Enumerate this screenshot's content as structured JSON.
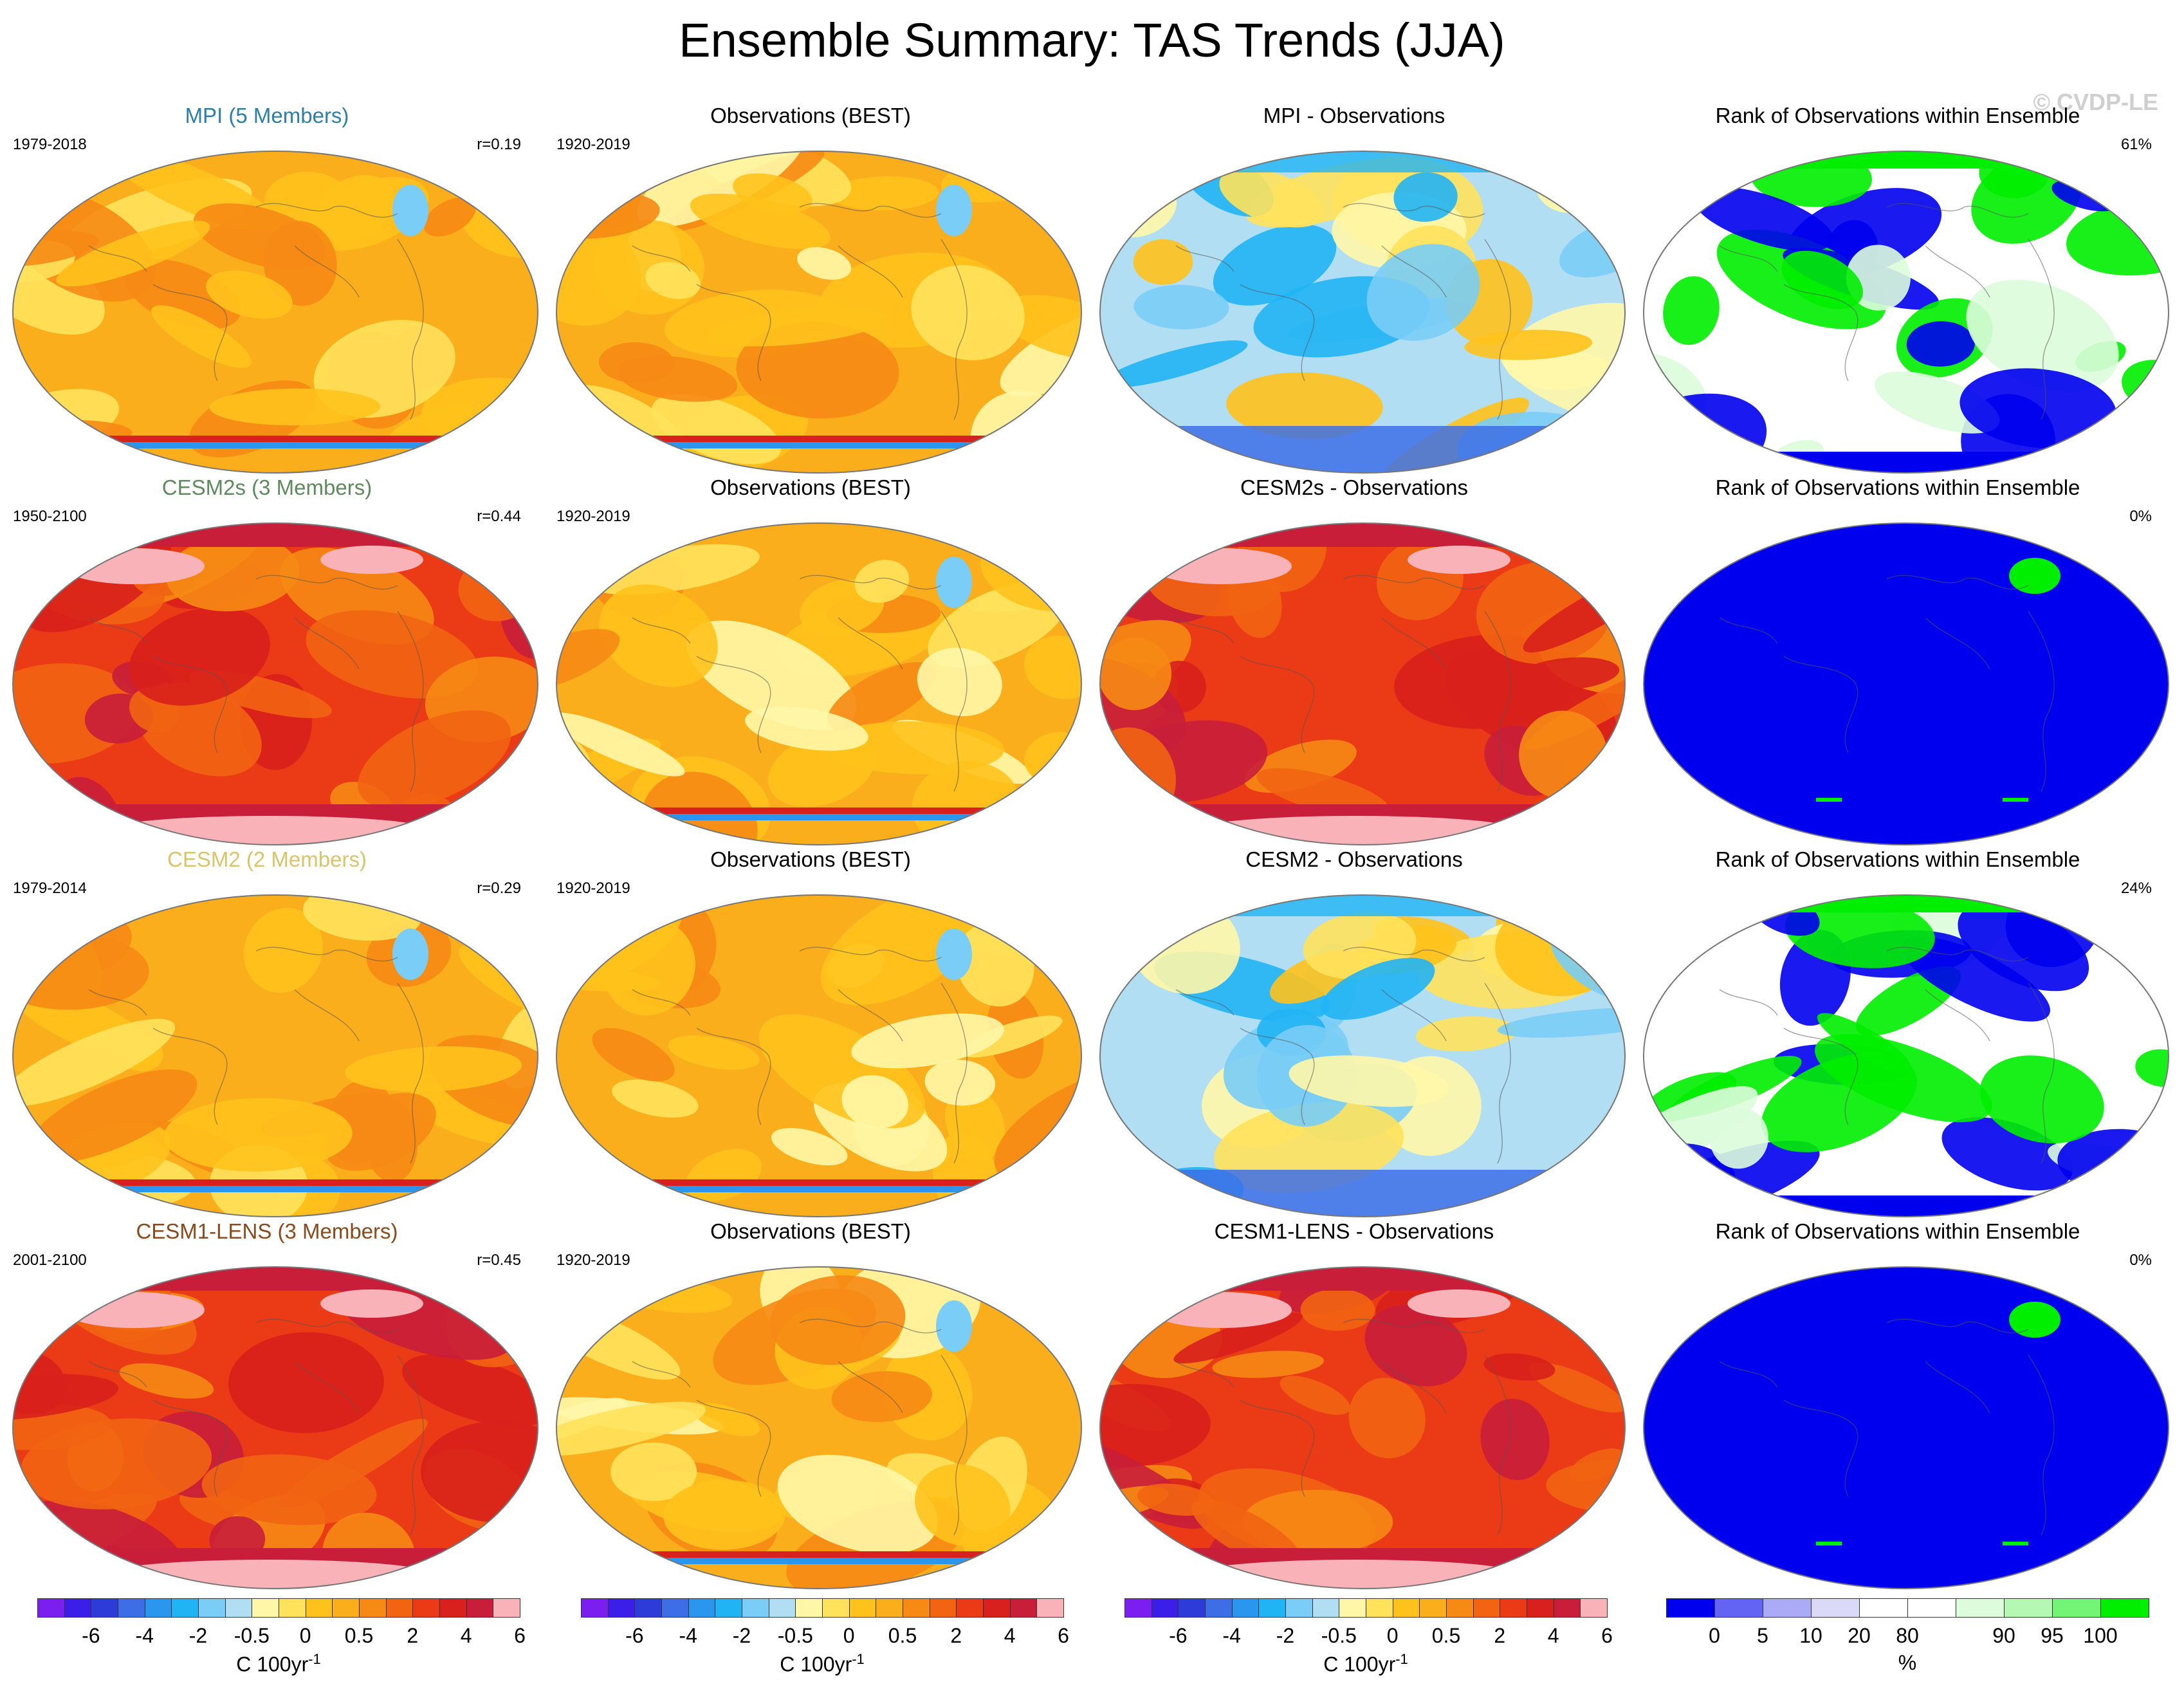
{
  "title": "Ensemble Summary: TAS Trends (JJA)",
  "watermark": "© CVDP-LE",
  "colors": {
    "model_mpi": "#2c7fa8",
    "model_cesm2s": "#5e8a5e",
    "model_cesm2": "#d9c46a",
    "model_cesm1": "#8a4a1c",
    "ocean_orange": "#fbae1c",
    "warm_red": "#e8281e",
    "cool_blue": "#5bb8ec",
    "rank_low": "#0000ee",
    "rank_high": "#00ee00"
  },
  "rows": [
    {
      "model": {
        "title": "MPI (5 Members)",
        "years": "1979-2018",
        "r": "r=0.19",
        "style": "moderate"
      },
      "obs": {
        "title": "Observations (BEST)",
        "years": "1920-2019"
      },
      "diff": {
        "title": "MPI - Observations",
        "style": "cool"
      },
      "rank": {
        "title": "Rank of Observations within Ensemble",
        "pct": "61%",
        "style": "mixed"
      }
    },
    {
      "model": {
        "title": "CESM2s (3 Members)",
        "years": "1950-2100",
        "r": "r=0.44",
        "style": "hot"
      },
      "obs": {
        "title": "Observations (BEST)",
        "years": "1920-2019"
      },
      "diff": {
        "title": "CESM2s - Observations",
        "style": "hot"
      },
      "rank": {
        "title": "Rank of Observations within Ensemble",
        "pct": "0%",
        "style": "blue"
      }
    },
    {
      "model": {
        "title": "CESM2 (2 Members)",
        "years": "1979-2014",
        "r": "r=0.29",
        "style": "moderate"
      },
      "obs": {
        "title": "Observations (BEST)",
        "years": "1920-2019"
      },
      "diff": {
        "title": "CESM2 - Observations",
        "style": "cool"
      },
      "rank": {
        "title": "Rank of Observations within Ensemble",
        "pct": "24%",
        "style": "mixed"
      }
    },
    {
      "model": {
        "title": "CESM1-LENS (3 Members)",
        "years": "2001-2100",
        "r": "r=0.45",
        "style": "hot"
      },
      "obs": {
        "title": "Observations (BEST)",
        "years": "1920-2019"
      },
      "diff": {
        "title": "CESM1-LENS - Observations",
        "style": "hot"
      },
      "rank": {
        "title": "Rank of Observations within Ensemble",
        "pct": "0%",
        "style": "blue"
      }
    }
  ],
  "trend_colorbar": {
    "colors": [
      "#7a1ff0",
      "#3b1ee8",
      "#2d3cd8",
      "#3d6ee6",
      "#2b96ee",
      "#21b4f4",
      "#79cdf6",
      "#b2def4",
      "#fff7a8",
      "#ffe25c",
      "#ffc21c",
      "#fbae1c",
      "#f68a14",
      "#f26412",
      "#ea3a16",
      "#d8201c",
      "#c81e3a",
      "#f8b2b8"
    ],
    "labels": [
      "-6",
      "-4",
      "-2",
      "-0.5",
      "0",
      "0.5",
      "2",
      "4",
      "6"
    ],
    "unit": "C 100yr",
    "unit_exp": "-1"
  },
  "rank_colorbar": {
    "colors": [
      "#0000ee",
      "#6464f4",
      "#aaaaf6",
      "#dadaf8",
      "#ffffff",
      "#ffffff",
      "#dcfcdc",
      "#b4f8b4",
      "#74f474",
      "#00ee00"
    ],
    "labels": [
      "0",
      "5",
      "10",
      "20",
      "80",
      "90",
      "95",
      "100"
    ],
    "unit": "%"
  }
}
